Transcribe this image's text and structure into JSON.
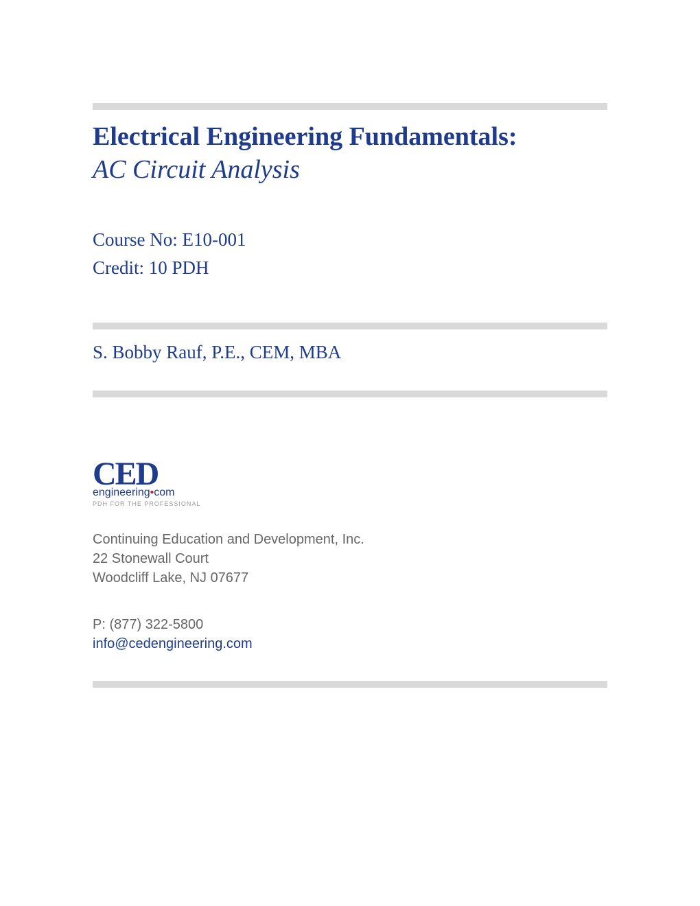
{
  "title": {
    "main": "Electrical Engineering Fundamentals:",
    "sub": "AC Circuit Analysis"
  },
  "course": {
    "number_label": "Course No: E10-001",
    "credit_label": "Credit: 10 PDH"
  },
  "author": "S. Bobby Rauf, P.E., CEM, MBA",
  "logo": {
    "ced": "CED",
    "engineering": "engineering",
    "dot": "•",
    "com": "com",
    "tagline": "PDH FOR THE PROFESSIONAL"
  },
  "company": {
    "name": "Continuing Education and Development, Inc.",
    "street": "22 Stonewall Court",
    "city_state": "Woodcliff Lake, NJ 07677"
  },
  "contact": {
    "phone": "P: (877) 322-5800",
    "email": "info@cedengineering.com"
  },
  "colors": {
    "primary": "#1f3c8c",
    "divider": "#d9d9d9",
    "text_gray": "#666666",
    "tagline_gray": "#999999",
    "red_dot": "#c41e3a"
  }
}
